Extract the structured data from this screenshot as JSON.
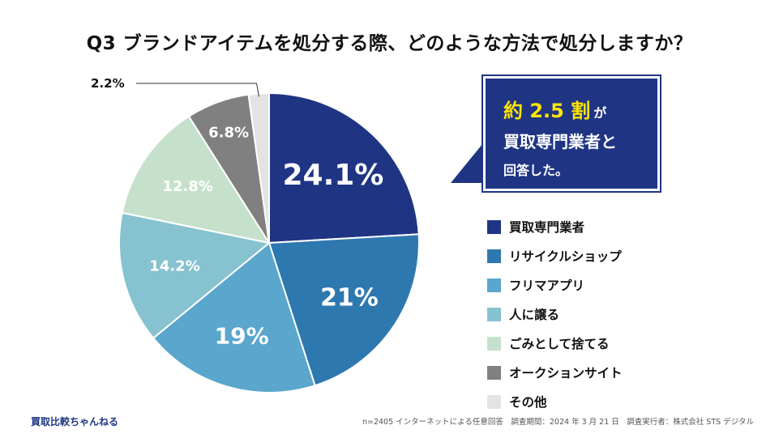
{
  "title": "Q3 ブランドアイテムを処分する際、どのような方法で処分しますか？",
  "chart_data": {
    "type": "pie",
    "title": "Q3 ブランドアイテムを処分する際、どのような方法で処分しますか？",
    "categories": [
      "買取専門業者",
      "リサイクルショップ",
      "フリマアプリ",
      "人に譲る",
      "ごみとして捨てる",
      "オークションサイト",
      "その他"
    ],
    "values": [
      24.1,
      21,
      19,
      14.2,
      12.8,
      6.8,
      2.2
    ],
    "data_labels": [
      "24.1%",
      "21%",
      "19%",
      "14.2%",
      "12.8%",
      "6.8%",
      "2.2%"
    ],
    "colors": [
      "#1f3584",
      "#2e78b0",
      "#5aa6cc",
      "#86c2cf",
      "#c6e1cb",
      "#808080",
      "#e3e3e3"
    ],
    "label_colors": [
      "#ffffff",
      "#ffffff",
      "#ffffff",
      "#ffffff",
      "#ffffff",
      "#ffffff",
      "#111111"
    ],
    "legend_position": "right"
  },
  "callout": {
    "highlight": "約 2.5 割",
    "suffix": "が",
    "line2": "買取専門業者と",
    "line3": "回答した。"
  },
  "brand": "買取比較ちゃんねる",
  "footnote": "n=2405 インターネットによる任意回答　調査期間：2024 年 3 月 21 日　調査実行者：株式会社 STS デジタル"
}
